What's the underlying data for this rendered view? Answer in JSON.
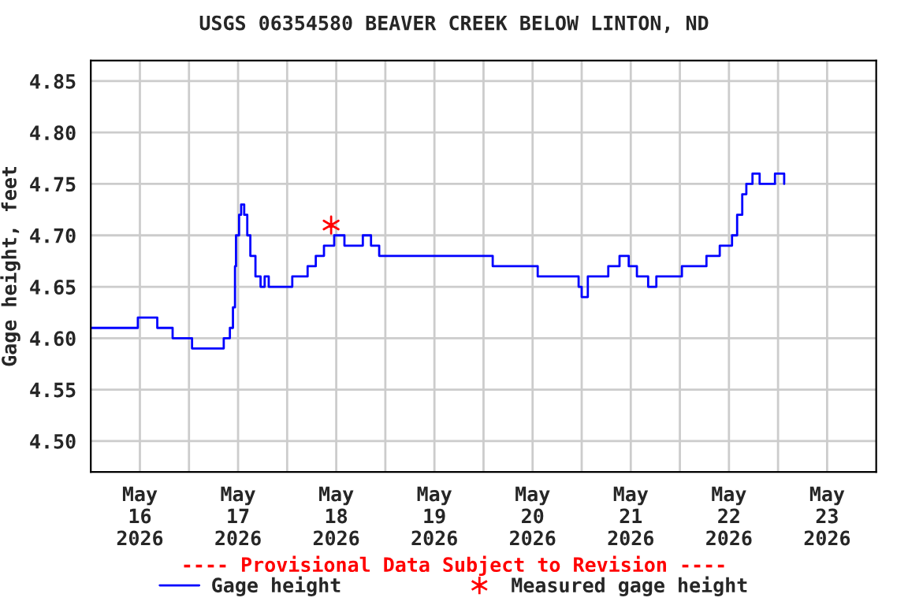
{
  "chart_data": {
    "type": "step",
    "title": "USGS 06354580 BEAVER CREEK BELOW LINTON, ND",
    "ylabel": "Gage height, feet",
    "annotations": [
      "---- Provisional Data Subject to Revision ----"
    ],
    "xlim": [
      "2026-05-16T00:00",
      "2026-05-24T00:00"
    ],
    "xticks": [
      {
        "value": "2026-05-16T12:00",
        "label": "May\n16\n2026"
      },
      {
        "value": "2026-05-17T00:00",
        "label": null
      },
      {
        "value": "2026-05-17T12:00",
        "label": "May\n17\n2026"
      },
      {
        "value": "2026-05-18T00:00",
        "label": null
      },
      {
        "value": "2026-05-18T12:00",
        "label": "May\n18\n2026"
      },
      {
        "value": "2026-05-19T00:00",
        "label": null
      },
      {
        "value": "2026-05-19T12:00",
        "label": "May\n19\n2026"
      },
      {
        "value": "2026-05-20T00:00",
        "label": null
      },
      {
        "value": "2026-05-20T12:00",
        "label": "May\n20\n2026"
      },
      {
        "value": "2026-05-21T00:00",
        "label": null
      },
      {
        "value": "2026-05-21T12:00",
        "label": "May\n21\n2026"
      },
      {
        "value": "2026-05-22T00:00",
        "label": null
      },
      {
        "value": "2026-05-22T12:00",
        "label": "May\n22\n2026"
      },
      {
        "value": "2026-05-23T00:00",
        "label": null
      },
      {
        "value": "2026-05-23T12:00",
        "label": "May\n23\n2026"
      }
    ],
    "ylim": [
      4.47,
      4.87
    ],
    "yticks": [
      {
        "value": 4.5,
        "label": "4.50"
      },
      {
        "value": 4.55,
        "label": "4.55"
      },
      {
        "value": 4.6,
        "label": "4.60"
      },
      {
        "value": 4.65,
        "label": "4.65"
      },
      {
        "value": 4.7,
        "label": "4.70"
      },
      {
        "value": 4.75,
        "label": "4.75"
      },
      {
        "value": 4.8,
        "label": "4.80"
      },
      {
        "value": 4.85,
        "label": "4.85"
      }
    ],
    "grid": true,
    "legend": "bottom",
    "series": [
      {
        "name": "Gage height",
        "color": "#0000ff",
        "marker": "none",
        "x": [
          "2026-05-16T00:00",
          "2026-05-16T04:30",
          "2026-05-16T11:30",
          "2026-05-16T16:15",
          "2026-05-16T20:00",
          "2026-05-16T23:15",
          "2026-05-17T00:45",
          "2026-05-17T03:45",
          "2026-05-17T07:00",
          "2026-05-17T08:30",
          "2026-05-17T10:00",
          "2026-05-17T10:45",
          "2026-05-17T11:15",
          "2026-05-17T11:30",
          "2026-05-17T12:15",
          "2026-05-17T12:45",
          "2026-05-17T13:30",
          "2026-05-17T14:15",
          "2026-05-17T15:00",
          "2026-05-17T16:15",
          "2026-05-17T17:30",
          "2026-05-17T18:30",
          "2026-05-17T19:30",
          "2026-05-18T00:00",
          "2026-05-18T01:15",
          "2026-05-18T03:00",
          "2026-05-18T05:00",
          "2026-05-18T07:00",
          "2026-05-18T09:00",
          "2026-05-18T11:30",
          "2026-05-18T14:00",
          "2026-05-18T16:30",
          "2026-05-18T18:30",
          "2026-05-18T20:30",
          "2026-05-18T22:30",
          "2026-05-19T02:15",
          "2026-05-19T08:00",
          "2026-05-19T17:45",
          "2026-05-19T23:30",
          "2026-05-20T02:15",
          "2026-05-20T09:15",
          "2026-05-20T13:15",
          "2026-05-20T19:00",
          "2026-05-20T23:15",
          "2026-05-21T00:00",
          "2026-05-21T01:30",
          "2026-05-21T04:30",
          "2026-05-21T06:30",
          "2026-05-21T09:15",
          "2026-05-21T11:30",
          "2026-05-21T13:30",
          "2026-05-21T16:15",
          "2026-05-21T18:15",
          "2026-05-22T00:00",
          "2026-05-22T00:30",
          "2026-05-22T04:00",
          "2026-05-22T06:30",
          "2026-05-22T09:45",
          "2026-05-22T11:30",
          "2026-05-22T12:45",
          "2026-05-22T14:00",
          "2026-05-22T15:15",
          "2026-05-22T16:15",
          "2026-05-22T17:45",
          "2026-05-22T19:30",
          "2026-05-22T22:30",
          "2026-05-22T23:15",
          "2026-05-23T00:45",
          "2026-05-23T01:30"
        ],
        "values": [
          4.61,
          4.61,
          4.62,
          4.61,
          4.6,
          4.6,
          4.59,
          4.59,
          4.59,
          4.6,
          4.61,
          4.63,
          4.67,
          4.7,
          4.72,
          4.73,
          4.72,
          4.7,
          4.68,
          4.66,
          4.65,
          4.66,
          4.65,
          4.65,
          4.66,
          4.66,
          4.67,
          4.68,
          4.69,
          4.7,
          4.69,
          4.69,
          4.7,
          4.69,
          4.68,
          4.68,
          4.68,
          4.68,
          4.68,
          4.67,
          4.67,
          4.66,
          4.66,
          4.65,
          4.64,
          4.66,
          4.66,
          4.67,
          4.68,
          4.67,
          4.66,
          4.65,
          4.66,
          4.66,
          4.67,
          4.67,
          4.68,
          4.69,
          4.69,
          4.7,
          4.72,
          4.74,
          4.75,
          4.76,
          4.75,
          4.75,
          4.76,
          4.76,
          4.75
        ]
      },
      {
        "name": "Measured gage height",
        "color": "#ff0000",
        "type": "scatter",
        "marker": "cross",
        "x": [
          "2026-05-18T10:45"
        ],
        "values": [
          4.71
        ]
      }
    ]
  }
}
